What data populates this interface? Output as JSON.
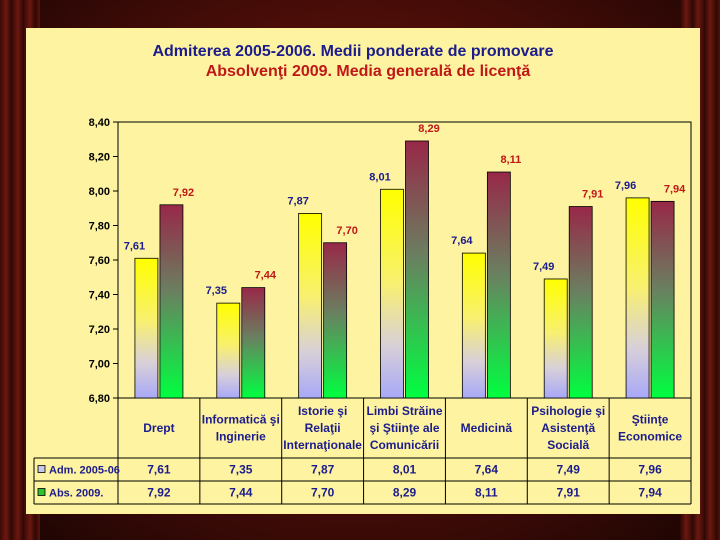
{
  "chart_data": {
    "type": "bar",
    "title": "Admiterea 2005-2006. Medii ponderate de promovare",
    "subtitle": "Absolvenţi 2009. Media generală de licenţă",
    "categories": [
      [
        "Drept"
      ],
      [
        "Informatică şi",
        "Inginerie"
      ],
      [
        "Istorie şi",
        "Relaţii",
        "Internaţionale"
      ],
      [
        "Limbi Străine",
        "şi Ştiinţe ale",
        "Comunicării"
      ],
      [
        "Medicină"
      ],
      [
        "Psihologie  şi",
        "Asistenţă",
        "Socială"
      ],
      [
        "Ştiinţe",
        "Economice"
      ]
    ],
    "series": [
      {
        "name": "Adm. 2005-06",
        "values": [
          7.61,
          7.35,
          7.87,
          8.01,
          7.64,
          7.49,
          7.96
        ],
        "labels": [
          "7,61",
          "7,35",
          "7,87",
          "8,01",
          "7,64",
          "7,49",
          "7,96"
        ],
        "label_color": "#1c1c8c"
      },
      {
        "name": "Abs. 2009.",
        "values": [
          7.92,
          7.44,
          7.7,
          8.29,
          8.11,
          7.91,
          7.94
        ],
        "labels": [
          "7,92",
          "7,44",
          "7,70",
          "8,29",
          "8,11",
          "7,91",
          "7,94"
        ],
        "label_color": "#c01818"
      }
    ],
    "yticks": [
      "8,40",
      "8,20",
      "8,00",
      "7,80",
      "7,60",
      "7,40",
      "7,20",
      "7,00",
      "6,80"
    ],
    "ylim": [
      6.8,
      8.4
    ],
    "grid": false,
    "legend": "data table below chart"
  }
}
